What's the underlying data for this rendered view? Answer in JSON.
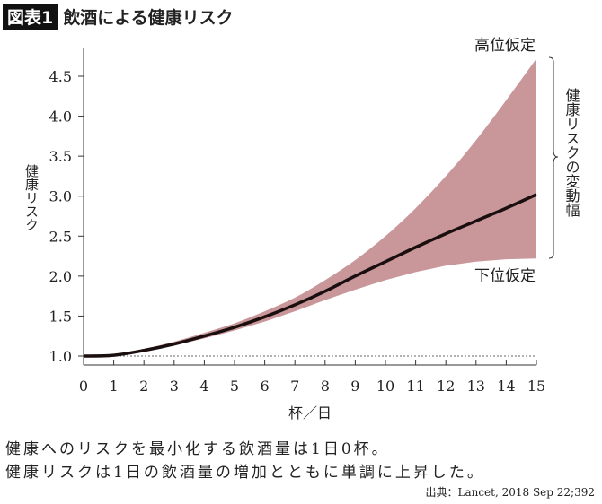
{
  "header": {
    "badge": "図表1",
    "title": "飲酒による健康リスク"
  },
  "chart_data": {
    "type": "area",
    "title": "飲酒による健康リスク",
    "xlabel": "杯／日",
    "ylabel": "健康リスク",
    "xlim": [
      0,
      15
    ],
    "ylim": [
      1.0,
      4.5
    ],
    "x_ticks": [
      "0",
      "1",
      "2",
      "3",
      "4",
      "5",
      "6",
      "7",
      "8",
      "9",
      "10",
      "11",
      "12",
      "13",
      "14",
      "15"
    ],
    "y_ticks": [
      "1.0",
      "1.5",
      "2.0",
      "2.5",
      "3.0",
      "3.5",
      "4.0",
      "4.5"
    ],
    "reference_line": 1.0,
    "x": [
      0,
      1,
      2,
      3,
      4,
      5,
      6,
      7,
      8,
      9,
      10,
      11,
      12,
      13,
      14,
      15
    ],
    "series": [
      {
        "values": [
          1.0,
          1.01,
          1.07,
          1.15,
          1.25,
          1.36,
          1.49,
          1.64,
          1.81,
          2.0,
          2.18,
          2.36,
          2.53,
          2.69,
          2.85,
          3.02
        ]
      }
    ],
    "band": {
      "upper_label": "高位仮定",
      "lower_label": "下位仮定",
      "upper": [
        1.0,
        1.02,
        1.09,
        1.18,
        1.29,
        1.41,
        1.56,
        1.73,
        1.95,
        2.2,
        2.5,
        2.85,
        3.25,
        3.7,
        4.2,
        4.72
      ],
      "lower": [
        1.0,
        1.0,
        1.06,
        1.13,
        1.22,
        1.32,
        1.43,
        1.56,
        1.7,
        1.83,
        1.95,
        2.05,
        2.13,
        2.18,
        2.21,
        2.22
      ],
      "range_label": "健康リスクの変動幅"
    },
    "colors": {
      "band": "#c9979a",
      "line": "#1a0e0e"
    }
  },
  "caption": {
    "line1": "健康へのリスクを最小化する飲酒量は1日0杯。",
    "line2": "健康リスクは1日の飲酒量の増加とともに単調に上昇した。"
  },
  "source": "出典：Lancet, 2018 Sep 22;392"
}
